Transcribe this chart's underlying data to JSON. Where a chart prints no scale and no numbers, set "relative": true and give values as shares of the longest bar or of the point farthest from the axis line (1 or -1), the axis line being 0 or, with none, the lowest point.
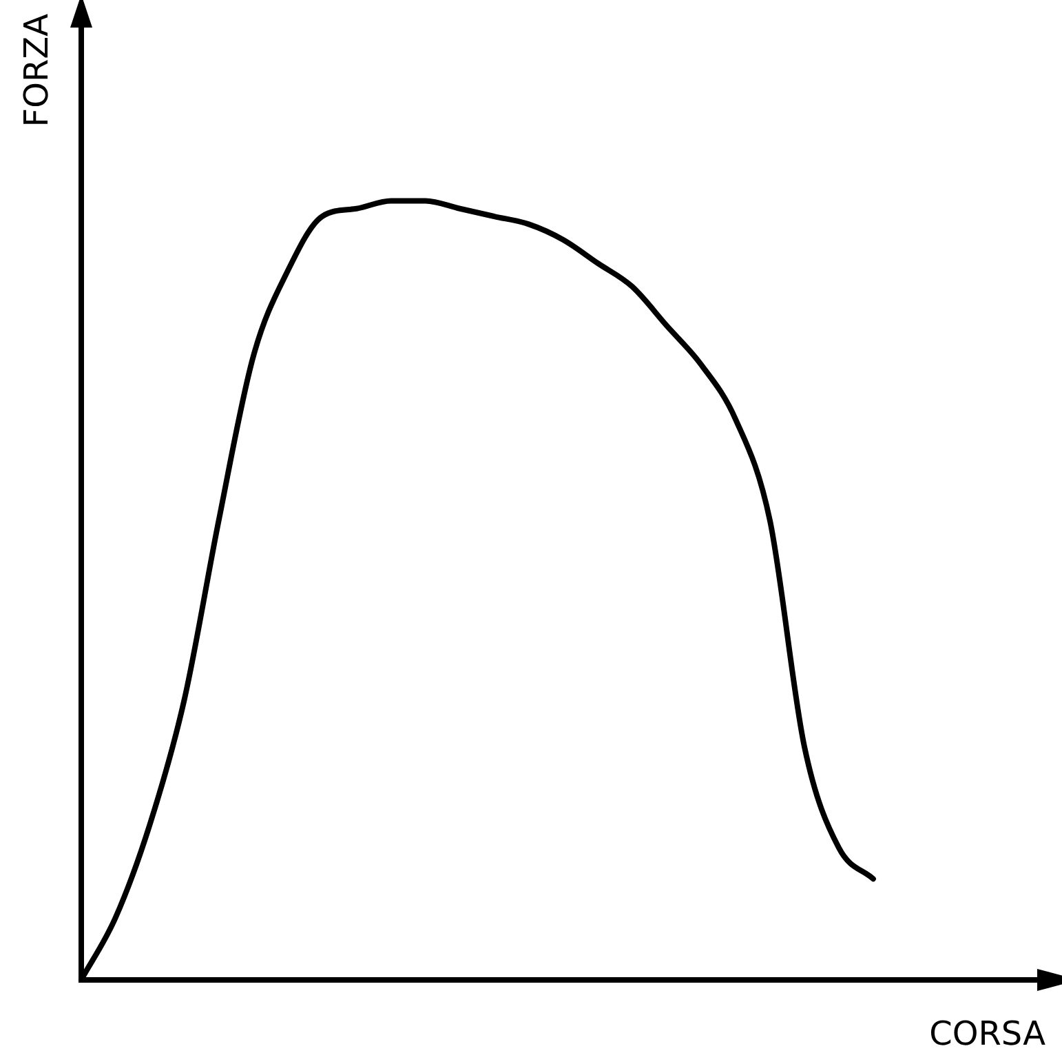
{
  "chart_data": {
    "type": "line",
    "relative": true,
    "xlabel": "CORSA",
    "ylabel": "FORZA",
    "categories": [
      null,
      null,
      null,
      null,
      null,
      null,
      null,
      null,
      null,
      null,
      null,
      null,
      null,
      null,
      null,
      null,
      null,
      null,
      null,
      null,
      null,
      null,
      null,
      null,
      null,
      null,
      null,
      null,
      null
    ],
    "series": [
      {
        "color": "#000000",
        "values": [
          0,
          0.08,
          0.2,
          0.36,
          0.59,
          0.8,
          0.91,
          0.98,
          0.99,
          1,
          1,
          0.99,
          0.98,
          0.97,
          0.95,
          0.92,
          0.89,
          0.84,
          0.79,
          0.72,
          0.59,
          0.3,
          0.17,
          0.13,
          null,
          null,
          null,
          null,
          null
        ]
      }
    ],
    "marker": "none",
    "line_style": "solid",
    "grid": false,
    "legend": false,
    "tick_labels": false
  }
}
